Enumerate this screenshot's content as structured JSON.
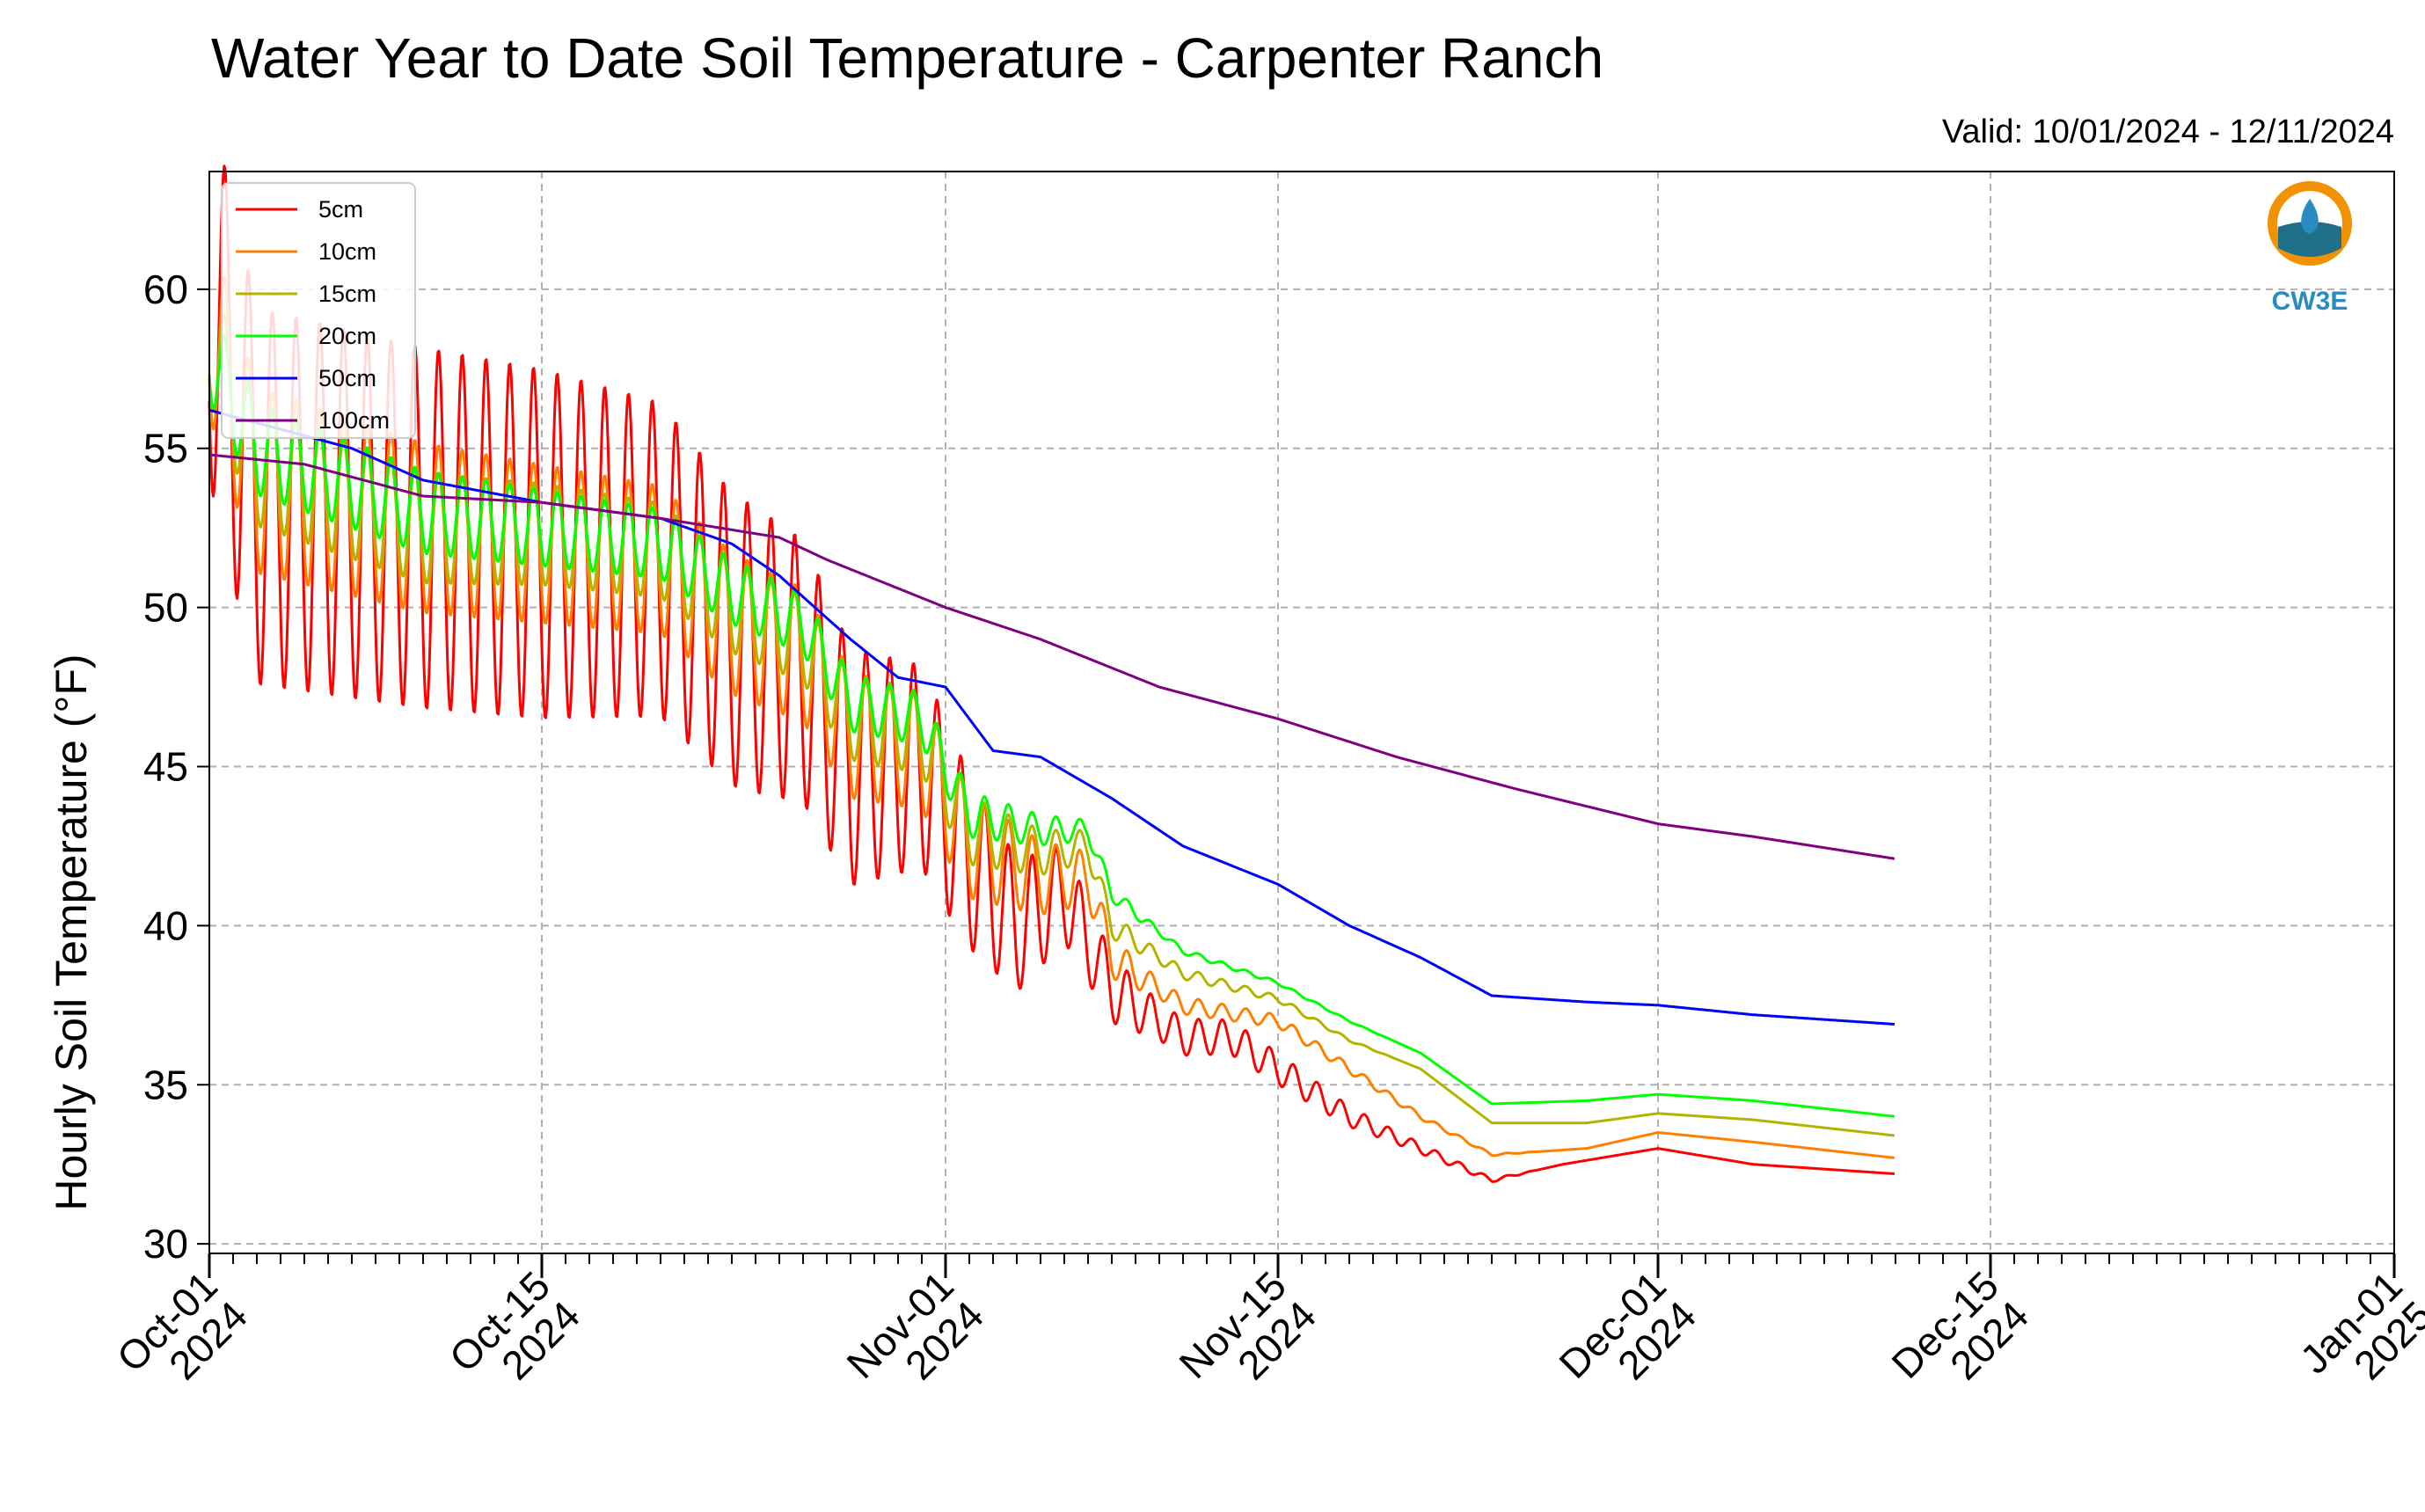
{
  "chart_data": {
    "type": "line",
    "title": "Water Year to Date Soil Temperature - Carpenter Ranch",
    "subtitle": "Valid: 10/01/2024 - 12/11/2024",
    "ylabel": "Hourly Soil Temperature (°F)",
    "xlabel": "",
    "xlim": [
      "2024-10-01",
      "2025-01-01"
    ],
    "ylim": [
      29.7,
      63.7
    ],
    "yticks": [
      30,
      35,
      40,
      45,
      50,
      55,
      60
    ],
    "xticks": [
      {
        "date": "2024-10-01",
        "line1": "Oct-01",
        "line2": "2024"
      },
      {
        "date": "2024-10-15",
        "line1": "Oct-15",
        "line2": "2024"
      },
      {
        "date": "2024-11-01",
        "line1": "Nov-01",
        "line2": "2024"
      },
      {
        "date": "2024-11-15",
        "line1": "Nov-15",
        "line2": "2024"
      },
      {
        "date": "2024-12-01",
        "line1": "Dec-01",
        "line2": "2024"
      },
      {
        "date": "2024-12-15",
        "line1": "Dec-15",
        "line2": "2024"
      },
      {
        "date": "2025-01-01",
        "line1": "Jan-01",
        "line2": "2025"
      }
    ],
    "grid": true,
    "legend_position": "top-left",
    "logo_text": "CW3E",
    "series": [
      {
        "name": "5cm",
        "color": "#ff0000",
        "amplitude": [
          [
            "2024-10-01",
            6
          ],
          [
            "2024-10-15",
            5.5
          ],
          [
            "2024-10-24",
            4.5
          ],
          [
            "2024-11-01",
            3
          ],
          [
            "2024-11-06",
            1.5
          ],
          [
            "2024-11-10",
            0.6
          ],
          [
            "2024-11-15",
            0.5
          ],
          [
            "2024-11-20",
            0.2
          ],
          [
            "2024-11-26",
            0
          ]
        ],
        "points": [
          [
            "2024-10-01",
            60
          ],
          [
            "2024-10-03",
            53.5
          ],
          [
            "2024-10-10",
            52.5
          ],
          [
            "2024-10-15",
            52
          ],
          [
            "2024-10-20",
            51.5
          ],
          [
            "2024-10-23",
            49
          ],
          [
            "2024-10-26",
            48
          ],
          [
            "2024-10-28",
            45
          ],
          [
            "2024-10-31",
            45
          ],
          [
            "2024-11-02",
            42
          ],
          [
            "2024-11-04",
            40
          ],
          [
            "2024-11-06",
            41
          ],
          [
            "2024-11-08",
            38
          ],
          [
            "2024-11-11",
            36.5
          ],
          [
            "2024-11-13",
            36.5
          ],
          [
            "2024-11-15",
            35.5
          ],
          [
            "2024-11-18",
            34
          ],
          [
            "2024-11-21",
            33
          ],
          [
            "2024-11-24",
            32
          ],
          [
            "2024-11-27",
            32.5
          ],
          [
            "2024-12-01",
            33
          ],
          [
            "2024-12-05",
            32.5
          ],
          [
            "2024-12-11",
            32.2
          ]
        ]
      },
      {
        "name": "10cm",
        "color": "#ff8000",
        "amplitude": [
          [
            "2024-10-01",
            3
          ],
          [
            "2024-10-15",
            2.5
          ],
          [
            "2024-10-24",
            2.2
          ],
          [
            "2024-11-01",
            1.8
          ],
          [
            "2024-11-06",
            1
          ],
          [
            "2024-11-10",
            0.3
          ],
          [
            "2024-11-20",
            0.1
          ],
          [
            "2024-11-26",
            0
          ]
        ],
        "points": [
          [
            "2024-10-01",
            59
          ],
          [
            "2024-10-03",
            54
          ],
          [
            "2024-10-10",
            52.5
          ],
          [
            "2024-10-15",
            52
          ],
          [
            "2024-10-20",
            51.5
          ],
          [
            "2024-10-23",
            49.5
          ],
          [
            "2024-10-26",
            48.5
          ],
          [
            "2024-10-28",
            46
          ],
          [
            "2024-10-31",
            45.5
          ],
          [
            "2024-11-02",
            42.5
          ],
          [
            "2024-11-05",
            41.5
          ],
          [
            "2024-11-07",
            41.5
          ],
          [
            "2024-11-08",
            39
          ],
          [
            "2024-11-11",
            37.5
          ],
          [
            "2024-11-15",
            37
          ],
          [
            "2024-11-18",
            35.5
          ],
          [
            "2024-11-21",
            34
          ],
          [
            "2024-11-24",
            32.8
          ],
          [
            "2024-11-28",
            33
          ],
          [
            "2024-12-01",
            33.5
          ],
          [
            "2024-12-05",
            33.2
          ],
          [
            "2024-12-11",
            32.7
          ]
        ]
      },
      {
        "name": "15cm",
        "color": "#b4b400",
        "amplitude": [
          [
            "2024-10-01",
            2
          ],
          [
            "2024-10-15",
            1.6
          ],
          [
            "2024-10-24",
            1.4
          ],
          [
            "2024-11-01",
            1.2
          ],
          [
            "2024-11-06",
            0.6
          ],
          [
            "2024-11-10",
            0.2
          ],
          [
            "2024-11-20",
            0
          ]
        ],
        "points": [
          [
            "2024-10-01",
            58.5
          ],
          [
            "2024-10-03",
            54.5
          ],
          [
            "2024-10-10",
            52.5
          ],
          [
            "2024-10-15",
            52.3
          ],
          [
            "2024-10-20",
            51.8
          ],
          [
            "2024-10-23",
            50
          ],
          [
            "2024-10-26",
            49
          ],
          [
            "2024-10-28",
            46.5
          ],
          [
            "2024-10-31",
            46
          ],
          [
            "2024-11-02",
            43
          ],
          [
            "2024-11-05",
            42.3
          ],
          [
            "2024-11-07",
            42.5
          ],
          [
            "2024-11-08",
            40
          ],
          [
            "2024-11-11",
            38.5
          ],
          [
            "2024-11-15",
            37.7
          ],
          [
            "2024-11-18",
            36.4
          ],
          [
            "2024-11-21",
            35.5
          ],
          [
            "2024-11-24",
            33.8
          ],
          [
            "2024-11-28",
            33.8
          ],
          [
            "2024-12-01",
            34.1
          ],
          [
            "2024-12-05",
            33.9
          ],
          [
            "2024-12-11",
            33.4
          ]
        ]
      },
      {
        "name": "20cm",
        "color": "#00ff00",
        "amplitude": [
          [
            "2024-10-01",
            1.5
          ],
          [
            "2024-10-15",
            1.2
          ],
          [
            "2024-10-24",
            1.0
          ],
          [
            "2024-11-01",
            0.8
          ],
          [
            "2024-11-06",
            0.4
          ],
          [
            "2024-11-10",
            0.1
          ],
          [
            "2024-11-20",
            0
          ]
        ],
        "points": [
          [
            "2024-10-01",
            58
          ],
          [
            "2024-10-03",
            55
          ],
          [
            "2024-10-10",
            53
          ],
          [
            "2024-10-15",
            52.5
          ],
          [
            "2024-10-20",
            52
          ],
          [
            "2024-10-23",
            50.5
          ],
          [
            "2024-10-26",
            49.5
          ],
          [
            "2024-10-28",
            47
          ],
          [
            "2024-10-31",
            46.5
          ],
          [
            "2024-11-02",
            43.5
          ],
          [
            "2024-11-05",
            43
          ],
          [
            "2024-11-07",
            43
          ],
          [
            "2024-11-08",
            41
          ],
          [
            "2024-11-11",
            39.2
          ],
          [
            "2024-11-15",
            38.2
          ],
          [
            "2024-11-18",
            37
          ],
          [
            "2024-11-21",
            36
          ],
          [
            "2024-11-24",
            34.4
          ],
          [
            "2024-11-28",
            34.5
          ],
          [
            "2024-12-01",
            34.7
          ],
          [
            "2024-12-05",
            34.5
          ],
          [
            "2024-12-11",
            34
          ]
        ]
      },
      {
        "name": "50cm",
        "color": "#0000ff",
        "amplitude": [],
        "points": [
          [
            "2024-10-01",
            56.2
          ],
          [
            "2024-10-03",
            55.8
          ],
          [
            "2024-10-07",
            55
          ],
          [
            "2024-10-10",
            54
          ],
          [
            "2024-10-15",
            53.3
          ],
          [
            "2024-10-20",
            52.8
          ],
          [
            "2024-10-23",
            52
          ],
          [
            "2024-10-25",
            51
          ],
          [
            "2024-10-28",
            49
          ],
          [
            "2024-10-30",
            47.8
          ],
          [
            "2024-11-01",
            47.5
          ],
          [
            "2024-11-03",
            45.5
          ],
          [
            "2024-11-05",
            45.3
          ],
          [
            "2024-11-08",
            44
          ],
          [
            "2024-11-11",
            42.5
          ],
          [
            "2024-11-15",
            41.3
          ],
          [
            "2024-11-18",
            40
          ],
          [
            "2024-11-21",
            39
          ],
          [
            "2024-11-24",
            37.8
          ],
          [
            "2024-11-28",
            37.6
          ],
          [
            "2024-12-01",
            37.5
          ],
          [
            "2024-12-05",
            37.2
          ],
          [
            "2024-12-11",
            36.9
          ]
        ]
      },
      {
        "name": "100cm",
        "color": "#800080",
        "amplitude": [],
        "points": [
          [
            "2024-10-01",
            54.8
          ],
          [
            "2024-10-05",
            54.5
          ],
          [
            "2024-10-10",
            53.5
          ],
          [
            "2024-10-15",
            53.3
          ],
          [
            "2024-10-20",
            52.8
          ],
          [
            "2024-10-25",
            52.2
          ],
          [
            "2024-10-27",
            51.5
          ],
          [
            "2024-11-01",
            50
          ],
          [
            "2024-11-05",
            49
          ],
          [
            "2024-11-10",
            47.5
          ],
          [
            "2024-11-15",
            46.5
          ],
          [
            "2024-11-20",
            45.3
          ],
          [
            "2024-11-25",
            44.3
          ],
          [
            "2024-12-01",
            43.2
          ],
          [
            "2024-12-05",
            42.8
          ],
          [
            "2024-12-11",
            42.1
          ]
        ]
      }
    ]
  }
}
